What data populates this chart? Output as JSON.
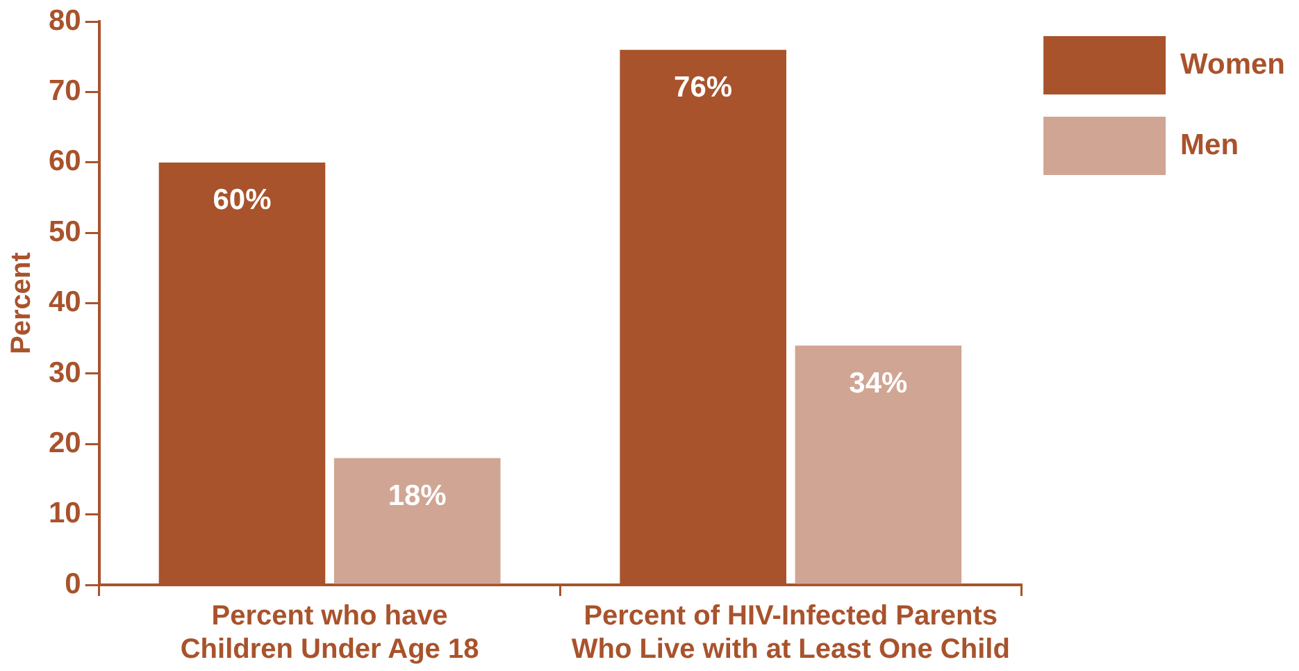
{
  "chart_data": {
    "type": "bar",
    "ylabel": "Percent",
    "categories": [
      "Percent who have\nChildren Under Age 18",
      "Percent of HIV-Infected Parents\nWho Live with at Least One Child"
    ],
    "series": [
      {
        "name": "Women",
        "color": "#a8532c",
        "values": [
          60,
          76
        ],
        "value_labels": [
          "60%",
          "76%"
        ]
      },
      {
        "name": "Men",
        "color": "#d0a594",
        "values": [
          18,
          34
        ],
        "value_labels": [
          "18%",
          "34%"
        ]
      }
    ],
    "ylim": [
      0,
      80
    ],
    "yticks": [
      0,
      10,
      20,
      30,
      40,
      50,
      60,
      70,
      80
    ],
    "grid": false,
    "legend": "top right"
  }
}
